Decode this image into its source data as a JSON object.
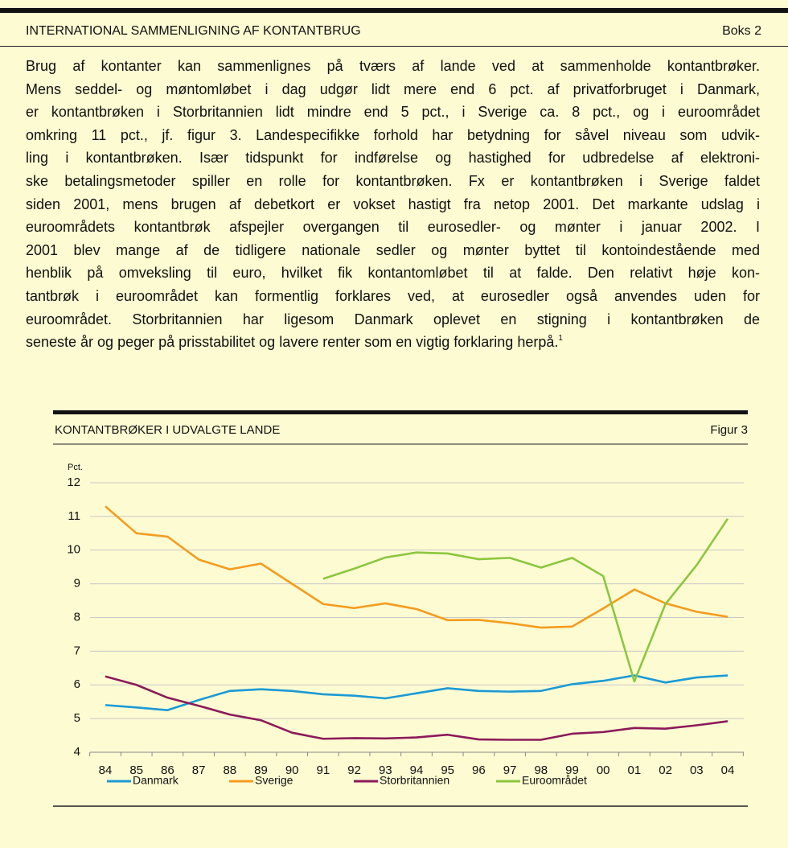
{
  "box": {
    "title": "INTERNATIONAL SAMMENLIGNING AF KONTANTBRUG",
    "label": "Boks 2",
    "lines": [
      "Brug af kontanter kan sammenlignes på tværs af lande ved at sammenholde kontantbrøker.",
      "Mens seddel- og møntomløbet i dag udgør lidt mere end 6 pct. af privatforbruget i Danmark,",
      "er kontantbrøken i Storbritannien lidt mindre end 5 pct., i Sverige ca. 8 pct., og i euroområdet",
      "omkring 11 pct., jf. figur 3. Landespecifikke forhold har betydning for såvel niveau som udvik-",
      "ling i kontantbrøken. Især tidspunkt for indførelse og hastighed for udbredelse af elektroni-",
      "ske betalingsmetoder spiller en rolle for kontantbrøken. Fx er kontantbrøken i Sverige faldet",
      "siden 2001, mens brugen af debetkort er vokset hastigt fra netop 2001. Det markante udslag i",
      "euroområdets kontantbrøk afspejler overgangen til eurosedler- og mønter i januar 2002. I",
      "2001 blev mange af de tidligere nationale sedler og mønter byttet til kontoindestående med",
      "henblik på omveksling til euro, hvilket fik kontantomløbet til at falde. Den relativt høje kon-",
      "tantbrøk i euroområdet kan formentlig forklares ved, at eurosedler også anvendes uden for",
      "euroområdet. Storbritannien har ligesom Danmark oplevet en stigning i kontantbrøken de",
      "seneste år og peger på prisstabilitet og lavere renter som en vigtig forklaring herpå."
    ],
    "footnote_ref": "1"
  },
  "chart_data": {
    "type": "line",
    "title": "KONTANTBRØKER I UDVALGTE LANDE",
    "label": "Figur 3",
    "y_label": "Pct.",
    "categories": [
      "84",
      "85",
      "86",
      "87",
      "88",
      "89",
      "90",
      "91",
      "92",
      "93",
      "94",
      "95",
      "96",
      "97",
      "98",
      "99",
      "00",
      "01",
      "02",
      "03",
      "04"
    ],
    "ylim": [
      4,
      12
    ],
    "yticks": [
      4,
      5,
      6,
      7,
      8,
      9,
      10,
      11,
      12
    ],
    "grid": true,
    "series": [
      {
        "name": "Danmark",
        "color": "#1a9ad6",
        "values": [
          5.4,
          5.33,
          5.25,
          5.55,
          5.82,
          5.87,
          5.82,
          5.72,
          5.68,
          5.6,
          5.75,
          5.9,
          5.82,
          5.8,
          5.82,
          6.02,
          6.12,
          6.28,
          6.07,
          6.22,
          6.28
        ]
      },
      {
        "name": "Sverige",
        "color": "#f39c1f",
        "values": [
          11.3,
          10.5,
          10.4,
          9.72,
          9.43,
          9.6,
          9.0,
          8.4,
          8.28,
          8.42,
          8.25,
          7.92,
          7.93,
          7.83,
          7.7,
          7.73,
          8.27,
          8.83,
          8.42,
          8.17,
          8.02
        ]
      },
      {
        "name": "Storbritannien",
        "color": "#8b1a5a",
        "values": [
          6.25,
          6.0,
          5.62,
          5.38,
          5.12,
          4.95,
          4.58,
          4.4,
          4.42,
          4.41,
          4.44,
          4.52,
          4.38,
          4.37,
          4.37,
          4.55,
          4.6,
          4.72,
          4.7,
          4.8,
          4.92
        ]
      },
      {
        "name": "Euroområdet",
        "color": "#8cc63f",
        "values": [
          null,
          null,
          null,
          null,
          null,
          null,
          null,
          9.15,
          9.45,
          9.78,
          9.93,
          9.9,
          9.73,
          9.77,
          9.48,
          9.77,
          9.23,
          6.1,
          8.4,
          9.55,
          10.93
        ]
      }
    ]
  }
}
